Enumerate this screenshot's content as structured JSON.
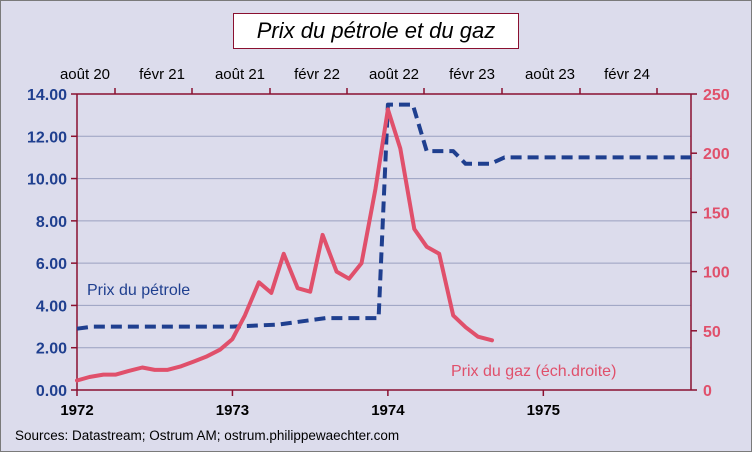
{
  "chart_data": {
    "type": "line",
    "title": "Prix du pétrole et du gaz",
    "source": "Sources: Datastream;  Ostrum  AM; ostrum.philippewaechter.com",
    "x_bottom": {
      "ticks": [
        "1972",
        "1973",
        "1974",
        "1975"
      ],
      "xlim": [
        1972.0,
        1975.95
      ]
    },
    "x_top": {
      "ticks": [
        "août 20",
        "févr 21",
        "août 21",
        "févr 22",
        "août 22",
        "févr 23",
        "août 23",
        "févr 24"
      ]
    },
    "y_left": {
      "ticks": [
        "0.00",
        "2.00",
        "4.00",
        "6.00",
        "8.00",
        "10.00",
        "12.00",
        "14.00"
      ],
      "ylim": [
        0,
        14
      ]
    },
    "y_right": {
      "ticks": [
        "0",
        "50",
        "100",
        "150",
        "200",
        "250"
      ],
      "ylim": [
        0,
        250
      ]
    },
    "grid": true,
    "colors": {
      "oil": "#1f3f8f",
      "gas": "#e0506b",
      "plot_bg": "#dcdcec",
      "axis": "#8a1030"
    },
    "series": [
      {
        "name": "Prix du pétrole",
        "axis": "left",
        "style": "dashed",
        "points": [
          [
            1972.0,
            2.9
          ],
          [
            1972.1,
            3.0
          ],
          [
            1972.5,
            3.0
          ],
          [
            1972.9,
            3.0
          ],
          [
            1973.0,
            3.0
          ],
          [
            1973.3,
            3.1
          ],
          [
            1973.5,
            3.3
          ],
          [
            1973.6,
            3.4
          ],
          [
            1973.75,
            3.4
          ],
          [
            1973.94,
            3.4
          ],
          [
            1974.0,
            13.5
          ],
          [
            1974.16,
            13.5
          ],
          [
            1974.25,
            11.3
          ],
          [
            1974.42,
            11.3
          ],
          [
            1974.5,
            10.7
          ],
          [
            1974.66,
            10.7
          ],
          [
            1974.75,
            11.0
          ],
          [
            1975.0,
            11.0
          ],
          [
            1975.5,
            11.0
          ],
          [
            1975.95,
            11.0
          ]
        ]
      },
      {
        "name": "Prix du gaz (éch.droite)",
        "axis": "right",
        "style": "solid",
        "points": [
          [
            1972.0,
            8
          ],
          [
            1972.08,
            11
          ],
          [
            1972.17,
            13
          ],
          [
            1972.25,
            13
          ],
          [
            1972.33,
            16
          ],
          [
            1972.42,
            19
          ],
          [
            1972.5,
            17
          ],
          [
            1972.58,
            17
          ],
          [
            1972.67,
            20
          ],
          [
            1972.75,
            24
          ],
          [
            1972.83,
            28
          ],
          [
            1972.92,
            34
          ],
          [
            1973.0,
            43
          ],
          [
            1973.08,
            63
          ],
          [
            1973.17,
            91
          ],
          [
            1973.25,
            82
          ],
          [
            1973.33,
            115
          ],
          [
            1973.42,
            86
          ],
          [
            1973.5,
            83
          ],
          [
            1973.58,
            131
          ],
          [
            1973.67,
            100
          ],
          [
            1973.75,
            94
          ],
          [
            1973.83,
            107
          ],
          [
            1973.92,
            170
          ],
          [
            1974.0,
            237
          ],
          [
            1974.08,
            204
          ],
          [
            1974.17,
            136
          ],
          [
            1974.25,
            121
          ],
          [
            1974.33,
            115
          ],
          [
            1974.42,
            63
          ],
          [
            1974.5,
            53
          ],
          [
            1974.58,
            45
          ],
          [
            1974.67,
            42
          ]
        ]
      }
    ]
  }
}
